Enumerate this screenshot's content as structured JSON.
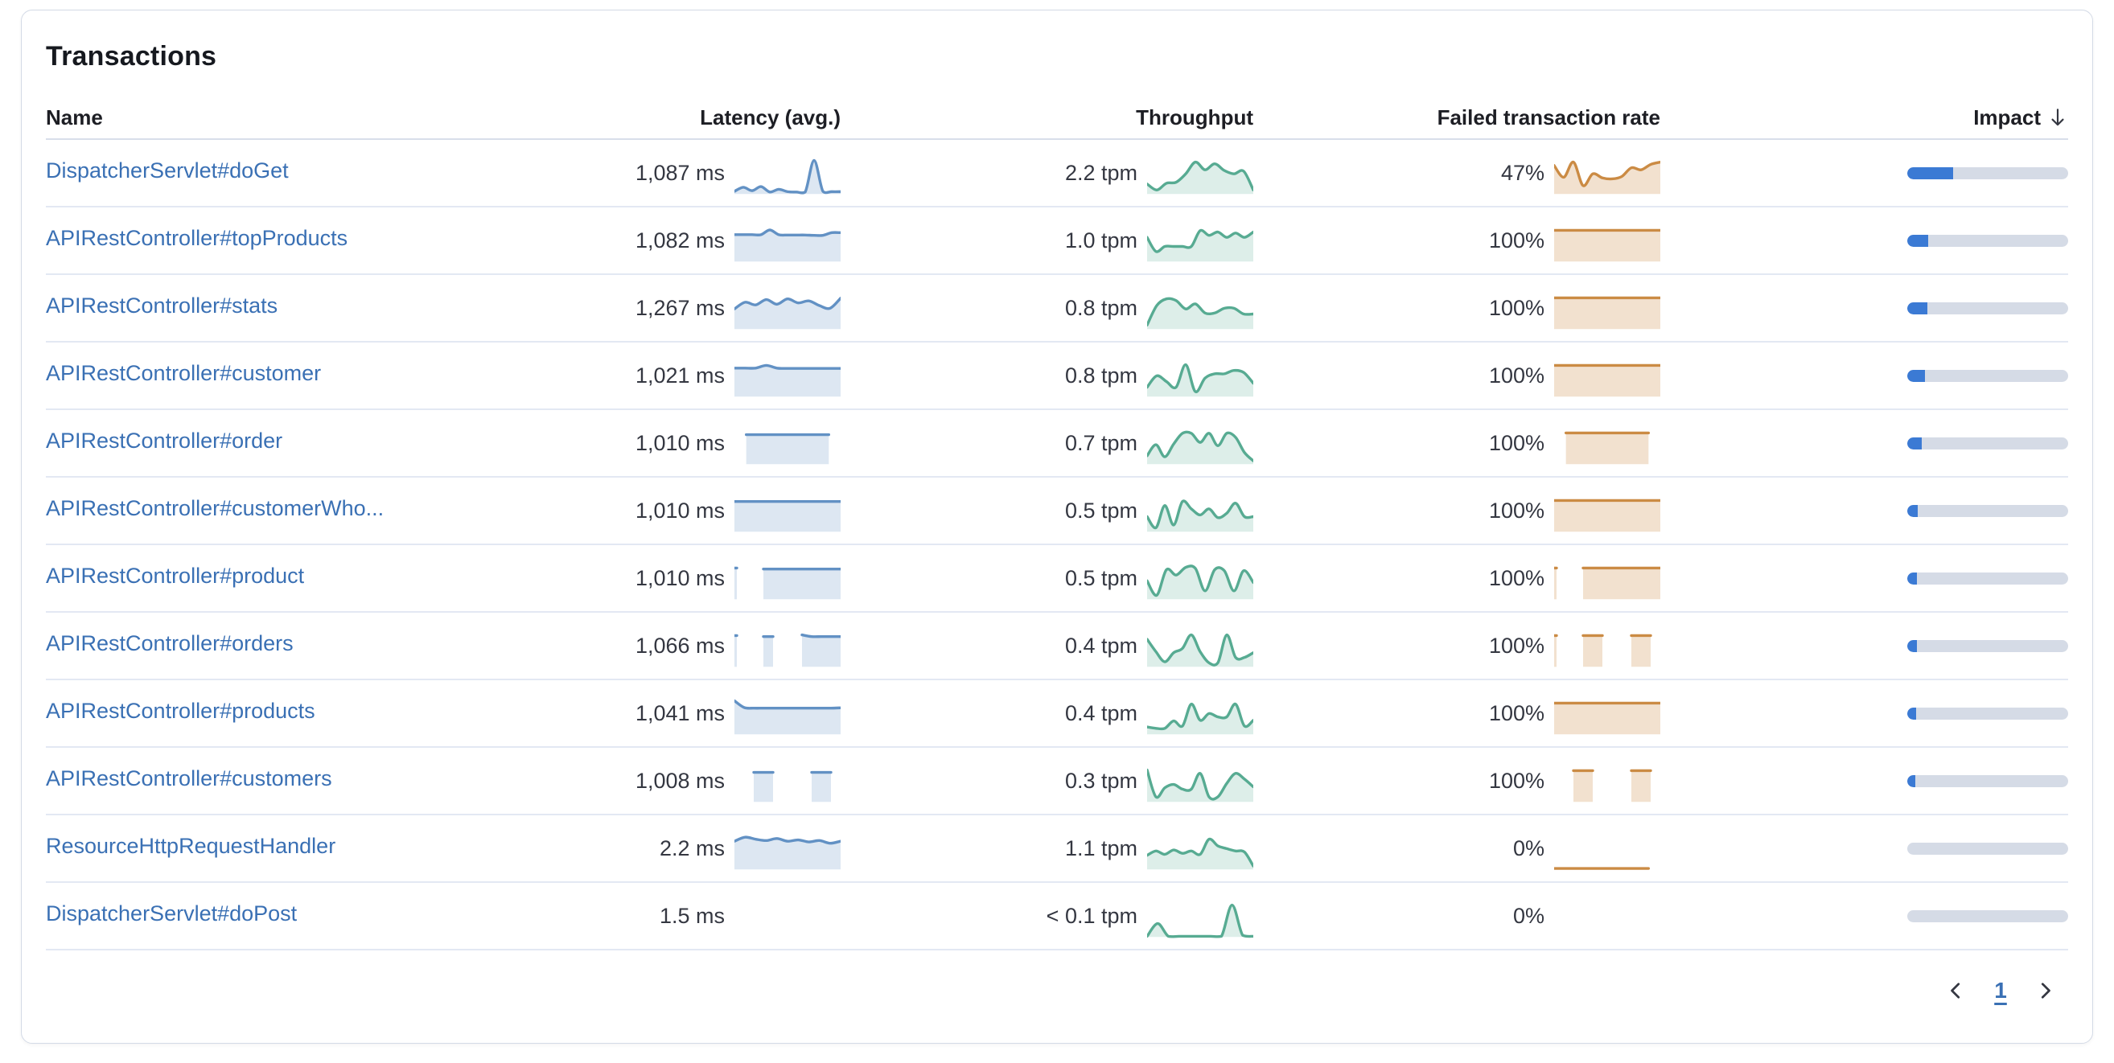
{
  "panel": {
    "title": "Transactions"
  },
  "table": {
    "columns": {
      "name": "Name",
      "latency": "Latency (avg.)",
      "throughput": "Throughput",
      "failed_rate": "Failed transaction rate",
      "impact": "Impact"
    },
    "sorted_by": "impact",
    "sort_direction": "desc",
    "rows": [
      {
        "name": "DispatcherServlet#doGet",
        "latency": {
          "value": "1,087 ms",
          "spark": [
            0.08,
            0.2,
            0.1,
            0.22,
            0.06,
            0.14,
            0.07,
            0.06,
            0.06,
            1.0,
            0.08,
            0.07,
            0.07
          ]
        },
        "throughput": {
          "value": "2.2 tpm",
          "spark": [
            0.3,
            0.12,
            0.32,
            0.35,
            0.6,
            0.95,
            0.72,
            0.9,
            0.7,
            0.6,
            0.68,
            0.12
          ]
        },
        "failed_rate": {
          "value": "47%",
          "spark": [
            0.85,
            0.5,
            0.95,
            0.25,
            0.6,
            0.48,
            0.45,
            0.52,
            0.78,
            0.72,
            0.88,
            0.95
          ]
        },
        "impact_pct": 28.5
      },
      {
        "name": "APIRestController#topProducts",
        "latency": {
          "value": "1,082 ms",
          "spark": [
            0.8,
            0.8,
            0.8,
            0.8,
            0.94,
            0.8,
            0.79,
            0.79,
            0.79,
            0.78,
            0.78,
            0.86,
            0.86
          ]
        },
        "throughput": {
          "value": "1.0 tpm",
          "spark": [
            0.72,
            0.3,
            0.45,
            0.45,
            0.45,
            0.45,
            0.92,
            0.78,
            0.88,
            0.72,
            0.85,
            0.72,
            0.88
          ]
        },
        "failed_rate": {
          "value": "100%",
          "spark": [
            0.93,
            0.93,
            0.93,
            0.93,
            0.93,
            0.93,
            0.93,
            0.93,
            0.93,
            0.93
          ]
        },
        "impact_pct": 13
      },
      {
        "name": "APIRestController#stats",
        "latency": {
          "value": "1,267 ms",
          "spark": [
            0.6,
            0.8,
            0.72,
            0.88,
            0.74,
            0.9,
            0.78,
            0.84,
            0.7,
            0.62,
            0.92
          ]
        },
        "throughput": {
          "value": "0.8 tpm",
          "spark": [
            0.12,
            0.7,
            0.9,
            0.85,
            0.6,
            0.75,
            0.48,
            0.48,
            0.62,
            0.62,
            0.45,
            0.45
          ]
        },
        "failed_rate": {
          "value": "100%",
          "spark": [
            0.93,
            0.93,
            0.93,
            0.93,
            0.93,
            0.93,
            0.93,
            0.93,
            0.93,
            0.93
          ]
        },
        "impact_pct": 12.5
      },
      {
        "name": "APIRestController#customer",
        "latency": {
          "value": "1,021 ms",
          "spark": [
            0.85,
            0.85,
            0.85,
            0.93,
            0.85,
            0.84,
            0.84,
            0.84,
            0.84,
            0.84,
            0.84
          ]
        },
        "throughput": {
          "value": "0.8 tpm",
          "spark": [
            0.28,
            0.62,
            0.45,
            0.28,
            0.95,
            0.15,
            0.55,
            0.68,
            0.68,
            0.78,
            0.72,
            0.4
          ]
        },
        "failed_rate": {
          "value": "100%",
          "spark": [
            0.93,
            0.93,
            0.93,
            0.93,
            0.93,
            0.93,
            0.93,
            0.93,
            0.93,
            0.93
          ]
        },
        "impact_pct": 11
      },
      {
        "name": "APIRestController#order",
        "latency": {
          "value": "1,010 ms",
          "spark": [
            null,
            0.88,
            0.88,
            0.88,
            0.88,
            0.88,
            0.88,
            0.88,
            0.88,
            null
          ]
        },
        "throughput": {
          "value": "0.7 tpm",
          "spark": [
            0.25,
            0.58,
            0.22,
            0.6,
            0.92,
            0.92,
            0.65,
            0.92,
            0.55,
            0.92,
            0.8,
            0.35,
            0.1
          ]
        },
        "failed_rate": {
          "value": "100%",
          "spark": [
            null,
            0.93,
            0.93,
            0.93,
            0.93,
            0.93,
            0.93,
            0.93,
            0.93,
            null
          ]
        },
        "impact_pct": 9
      },
      {
        "name": "APIRestController#customerWho...",
        "latency": {
          "value": "1,010 ms",
          "spark": [
            0.9,
            0.9,
            0.9,
            0.9,
            0.9,
            0.9,
            0.9,
            0.9,
            0.9,
            0.9
          ]
        },
        "throughput": {
          "value": "0.5 tpm",
          "spark": [
            0.45,
            0.12,
            0.78,
            0.2,
            0.9,
            0.68,
            0.5,
            0.68,
            0.42,
            0.55,
            0.85,
            0.45,
            0.45
          ]
        },
        "failed_rate": {
          "value": "100%",
          "spark": [
            0.93,
            0.93,
            0.93,
            0.93,
            0.93,
            0.93,
            0.93,
            0.93,
            0.93,
            0.93
          ]
        },
        "impact_pct": 6.5
      },
      {
        "name": "APIRestController#product",
        "latency": {
          "value": "1,010 ms",
          "spark": [
            0.93,
            null,
            null,
            0.9,
            0.9,
            0.9,
            0.9,
            0.9,
            0.9,
            0.9,
            0.9,
            0.9
          ]
        },
        "throughput": {
          "value": "0.5 tpm",
          "spark": [
            0.55,
            0.12,
            0.88,
            0.72,
            0.95,
            0.92,
            0.25,
            0.88,
            0.85,
            0.25,
            0.85,
            0.5
          ]
        },
        "failed_rate": {
          "value": "100%",
          "spark": [
            0.93,
            null,
            null,
            0.93,
            0.93,
            0.93,
            0.93,
            0.93,
            0.93,
            0.93,
            0.93,
            0.93
          ]
        },
        "impact_pct": 6
      },
      {
        "name": "APIRestController#orders",
        "latency": {
          "value": "1,066 ms",
          "spark": [
            0.93,
            null,
            null,
            0.9,
            0.9,
            null,
            null,
            0.95,
            0.9,
            0.9,
            0.9,
            0.9
          ]
        },
        "throughput": {
          "value": "0.4 tpm",
          "spark": [
            0.82,
            0.45,
            0.15,
            0.42,
            0.55,
            0.95,
            0.45,
            0.12,
            0.12,
            0.95,
            0.28,
            0.28,
            0.42
          ]
        },
        "failed_rate": {
          "value": "100%",
          "spark": [
            0.93,
            null,
            null,
            0.93,
            0.93,
            0.93,
            null,
            null,
            0.93,
            0.93,
            0.93,
            null
          ]
        },
        "impact_pct": 6
      },
      {
        "name": "APIRestController#products",
        "latency": {
          "value": "1,041 ms",
          "spark": [
            1.0,
            0.8,
            0.78,
            0.78,
            0.78,
            0.78,
            0.78,
            0.78,
            0.78,
            0.78,
            0.78,
            0.79
          ]
        },
        "throughput": {
          "value": "0.4 tpm",
          "spark": [
            0.22,
            0.18,
            0.18,
            0.4,
            0.25,
            0.9,
            0.42,
            0.62,
            0.52,
            0.52,
            0.9,
            0.25,
            0.42
          ]
        },
        "failed_rate": {
          "value": "100%",
          "spark": [
            0.93,
            0.93,
            0.93,
            0.93,
            0.93,
            0.93,
            0.93,
            0.93,
            0.93,
            0.93
          ]
        },
        "impact_pct": 5.5
      },
      {
        "name": "APIRestController#customers",
        "latency": {
          "value": "1,008 ms",
          "spark": [
            null,
            null,
            0.88,
            0.88,
            0.88,
            null,
            null,
            null,
            0.88,
            0.88,
            0.88,
            null
          ]
        },
        "throughput": {
          "value": "0.3 tpm",
          "spark": [
            0.95,
            0.15,
            0.42,
            0.52,
            0.38,
            0.38,
            0.85,
            0.15,
            0.15,
            0.55,
            0.85,
            0.68,
            0.45
          ]
        },
        "failed_rate": {
          "value": "100%",
          "spark": [
            null,
            null,
            0.93,
            0.93,
            0.93,
            null,
            null,
            null,
            0.93,
            0.93,
            0.93,
            null
          ]
        },
        "impact_pct": 5
      },
      {
        "name": "ResourceHttpRequestHandler",
        "latency": {
          "value": "2.2 ms",
          "spark": [
            0.84,
            0.96,
            0.9,
            0.86,
            0.92,
            0.84,
            0.88,
            0.82,
            0.86,
            0.78,
            0.84
          ]
        },
        "throughput": {
          "value": "1.1 tpm",
          "spark": [
            0.42,
            0.55,
            0.45,
            0.58,
            0.48,
            0.55,
            0.45,
            0.9,
            0.7,
            0.62,
            0.55,
            0.52,
            0.1
          ]
        },
        "failed_rate": {
          "value": "0%",
          "spark": [
            0.03,
            0.03,
            0.03,
            0.03,
            0.03,
            0.03,
            0.03,
            0.03,
            0.03,
            null
          ]
        },
        "impact_pct": 0
      },
      {
        "name": "DispatcherServlet#doPost",
        "latency": {
          "value": "1.5 ms",
          "spark": []
        },
        "throughput": {
          "value": "< 0.1 tpm",
          "spark": [
            0.02,
            0.4,
            0.02,
            0.02,
            0.02,
            0.02,
            0.02,
            0.02,
            0.95,
            0.05,
            0.02
          ]
        },
        "failed_rate": {
          "value": "0%",
          "spark": []
        },
        "impact_pct": 0
      }
    ]
  },
  "pagination": {
    "current_page": "1"
  },
  "colors": {
    "link": "#3a70b4",
    "text": "#343741",
    "latency_spark": {
      "stroke": "#6291c4",
      "fill": "rgba(98,145,196,0.22)"
    },
    "throughput_spark": {
      "stroke": "#57ab92",
      "fill": "rgba(87,171,146,0.20)"
    },
    "failed_spark": {
      "stroke": "#cb8b44",
      "fill": "rgba(203,139,68,0.26)"
    },
    "impact_bar_fill": "#3b7ad4",
    "impact_bar_track": "#d5dbe6"
  }
}
